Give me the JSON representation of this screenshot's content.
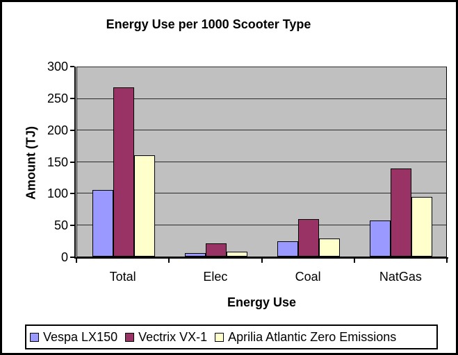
{
  "chart_data": {
    "type": "bar",
    "title": "Energy Use per 1000 Scooter Type",
    "xlabel": "Energy Use",
    "ylabel": "Amount (TJ)",
    "categories": [
      "Total",
      "Elec",
      "Coal",
      "NatGas"
    ],
    "series": [
      {
        "name": "Vespa LX150",
        "color": "#9999FF",
        "values": [
          105,
          6,
          24,
          57
        ]
      },
      {
        "name": "Vectrix VX-1",
        "color": "#993366",
        "values": [
          268,
          21,
          59,
          140
        ]
      },
      {
        "name": "Aprilia Atlantic Zero Emissions",
        "color": "#FFFFCC",
        "values": [
          160,
          8,
          29,
          95
        ]
      }
    ],
    "ylim": [
      0,
      300
    ],
    "yticks": [
      0,
      50,
      100,
      150,
      200,
      250,
      300
    ],
    "grid": true,
    "legend_position": "bottom",
    "colors": {
      "plot_background": "#C0C0C0",
      "gridline": "#2b2b2b",
      "bar_border": "#000000",
      "axis_line": "#000000",
      "chart_background": "#FFFFFF",
      "frame_border": "#000000",
      "text": "#000000"
    }
  }
}
